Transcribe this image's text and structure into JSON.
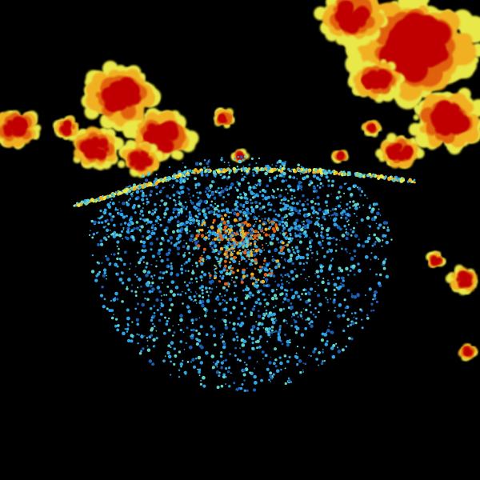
{
  "image": {
    "background": "#000000",
    "palette": {
      "very_light": "#1a5fb4",
      "light": "#2fa4e7",
      "light_moderate": "#5fd3c8",
      "moderate": "#e8e84a",
      "moderate_heavy": "#f0b020",
      "heavy": "#e06010",
      "very_heavy": "#c00000"
    }
  }
}
